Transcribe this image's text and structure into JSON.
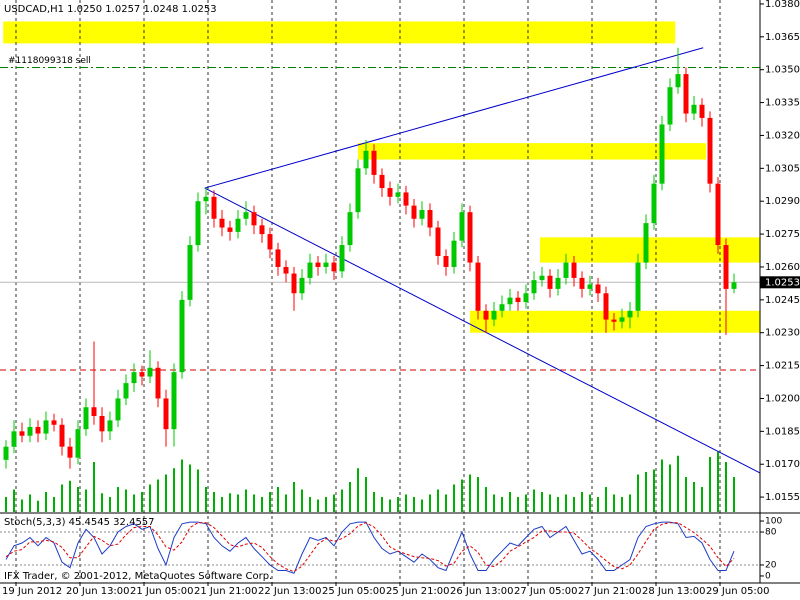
{
  "chart_data": {
    "type": "candlestick",
    "title": "USDCAD,H1  1.0250 1.0257 1.0248 1.0253",
    "copyright": "IFX Trader, © 2001-2012, MetaQuotes Software Corp.",
    "up_color": "#00c800",
    "down_color": "#ff0000",
    "volume_color": "#00b000",
    "xlim": [
      -2,
      93
    ],
    "ylim": [
      1.01482,
      1.03818
    ],
    "xticks": [
      {
        "value": 0,
        "label": "19 Jun 2012"
      },
      {
        "value": 8,
        "label": "20 Jun 13:00"
      },
      {
        "value": 16,
        "label": "21 Jun 05:00"
      },
      {
        "value": 24,
        "label": "21 Jun 21:00"
      },
      {
        "value": 32,
        "label": "22 Jun 13:00"
      },
      {
        "value": 40,
        "label": "25 Jun 05:00"
      },
      {
        "value": 48,
        "label": "25 Jun 21:00"
      },
      {
        "value": 56,
        "label": "26 Jun 13:00"
      },
      {
        "value": 64,
        "label": "27 Jun 05:00"
      },
      {
        "value": 72,
        "label": "27 Jun 21:00"
      },
      {
        "value": 80,
        "label": "28 Jun 13:00"
      },
      {
        "value": 88,
        "label": "29 Jun 05:00"
      }
    ],
    "yticks": [
      {
        "value": 1.038,
        "label": "1.0380"
      },
      {
        "value": 1.0365,
        "label": "1.0365"
      },
      {
        "value": 1.035,
        "label": "1.0350"
      },
      {
        "value": 1.0335,
        "label": "1.0335"
      },
      {
        "value": 1.032,
        "label": "1.0320"
      },
      {
        "value": 1.0305,
        "label": "1.0305"
      },
      {
        "value": 1.029,
        "label": "1.0290"
      },
      {
        "value": 1.0275,
        "label": "1.0275"
      },
      {
        "value": 1.026,
        "label": "1.0260"
      },
      {
        "value": 1.0245,
        "label": "1.0245"
      },
      {
        "value": 1.023,
        "label": "1.0230"
      },
      {
        "value": 1.0215,
        "label": "1.0215"
      },
      {
        "value": 1.02,
        "label": "1.0200"
      },
      {
        "value": 1.0185,
        "label": "1.0185"
      },
      {
        "value": 1.017,
        "label": "1.0170"
      },
      {
        "value": 1.0155,
        "label": "1.0155"
      }
    ],
    "last_price": {
      "value": 1.0253,
      "label": "1.0253"
    },
    "levels": [
      {
        "value": 1.0351,
        "color": "#008000",
        "dash": "8 3 2 3",
        "label": "#1118099318 sell"
      },
      {
        "value": 1.0213,
        "color": "#cc0000",
        "dash": "6 4"
      }
    ],
    "zones": [
      {
        "x": [
          -1.6,
          82.4
        ],
        "y": [
          1.0372,
          1.0362
        ]
      },
      {
        "x": [
          42.75,
          86.25
        ],
        "y": [
          1.03165,
          1.0309
        ]
      },
      {
        "x": [
          65.5,
          93
        ],
        "y": [
          1.02735,
          1.0262
        ]
      },
      {
        "x": [
          56.75,
          93
        ],
        "y": [
          1.024,
          1.023
        ]
      }
    ],
    "zone_color": "#ffff00",
    "trendlines": [
      {
        "x": [
          23.6,
          85.9
        ],
        "y": [
          1.0296,
          1.036
        ]
      },
      {
        "x": [
          23.6,
          93
        ],
        "y": [
          1.0296,
          1.0166
        ]
      }
    ],
    "trendline_color": "#0000cc",
    "ohlc": [
      [
        1.0172,
        1.0181,
        1.0168,
        1.0178
      ],
      [
        1.0178,
        1.019,
        1.0175,
        1.0185
      ],
      [
        1.0185,
        1.0189,
        1.018,
        1.0183
      ],
      [
        1.0183,
        1.0191,
        1.018,
        1.0187
      ],
      [
        1.0187,
        1.019,
        1.018,
        1.0184
      ],
      [
        1.0184,
        1.0194,
        1.0181,
        1.019
      ],
      [
        1.019,
        1.0193,
        1.0185,
        1.0188
      ],
      [
        1.0188,
        1.0191,
        1.0174,
        1.0178
      ],
      [
        1.0178,
        1.0182,
        1.0168,
        1.0173
      ],
      [
        1.0173,
        1.019,
        1.017,
        1.0186
      ],
      [
        1.0186,
        1.02,
        1.0183,
        1.0196
      ],
      [
        1.0196,
        1.0226,
        1.0188,
        1.0192
      ],
      [
        1.0192,
        1.0196,
        1.018,
        1.0185
      ],
      [
        1.0185,
        1.0194,
        1.0181,
        1.019
      ],
      [
        1.019,
        1.0204,
        1.0187,
        1.02
      ],
      [
        1.02,
        1.0211,
        1.0197,
        1.0207
      ],
      [
        1.0207,
        1.0216,
        1.0203,
        1.0212
      ],
      [
        1.0212,
        1.0215,
        1.0206,
        1.021
      ],
      [
        1.021,
        1.0222,
        1.0207,
        1.0214
      ],
      [
        1.0214,
        1.0217,
        1.0196,
        1.02
      ],
      [
        1.02,
        1.0204,
        1.0178,
        1.0186
      ],
      [
        1.0186,
        1.0216,
        1.0178,
        1.0212
      ],
      [
        1.0212,
        1.0249,
        1.0209,
        1.0245
      ],
      [
        1.0245,
        1.0274,
        1.0242,
        1.027
      ],
      [
        1.027,
        1.0294,
        1.0267,
        1.029
      ],
      [
        1.029,
        1.0296,
        1.0284,
        1.0292
      ],
      [
        1.0292,
        1.0295,
        1.0278,
        1.0282
      ],
      [
        1.0282,
        1.0286,
        1.0274,
        1.0278
      ],
      [
        1.0278,
        1.0281,
        1.0272,
        1.0276
      ],
      [
        1.0276,
        1.0286,
        1.0273,
        1.0282
      ],
      [
        1.0282,
        1.029,
        1.0279,
        1.0285
      ],
      [
        1.0285,
        1.0288,
        1.0275,
        1.0279
      ],
      [
        1.0279,
        1.0282,
        1.0271,
        1.0275
      ],
      [
        1.0275,
        1.0278,
        1.0264,
        1.0268
      ],
      [
        1.0268,
        1.0271,
        1.0256,
        1.026
      ],
      [
        1.026,
        1.0263,
        1.0253,
        1.0257
      ],
      [
        1.0257,
        1.026,
        1.024,
        1.0248
      ],
      [
        1.0248,
        1.0259,
        1.0245,
        1.0255
      ],
      [
        1.0255,
        1.0266,
        1.0252,
        1.0262
      ],
      [
        1.0262,
        1.0265,
        1.0256,
        1.026
      ],
      [
        1.026,
        1.0266,
        1.0257,
        1.0262
      ],
      [
        1.0262,
        1.0265,
        1.0254,
        1.0258
      ],
      [
        1.0258,
        1.0274,
        1.0255,
        1.027
      ],
      [
        1.027,
        1.0289,
        1.0267,
        1.0285
      ],
      [
        1.0285,
        1.0309,
        1.0282,
        1.0305
      ],
      [
        1.0305,
        1.0318,
        1.0302,
        1.0313
      ],
      [
        1.0313,
        1.0316,
        1.0298,
        1.0302
      ],
      [
        1.0302,
        1.0305,
        1.0292,
        1.0296
      ],
      [
        1.0296,
        1.0299,
        1.0288,
        1.0292
      ],
      [
        1.0292,
        1.0298,
        1.0289,
        1.0294
      ],
      [
        1.0294,
        1.0297,
        1.0284,
        1.0288
      ],
      [
        1.0288,
        1.0291,
        1.0278,
        1.0282
      ],
      [
        1.0282,
        1.029,
        1.0279,
        1.0286
      ],
      [
        1.0286,
        1.0289,
        1.0274,
        1.0278
      ],
      [
        1.0278,
        1.0281,
        1.0261,
        1.0265
      ],
      [
        1.0265,
        1.0268,
        1.0256,
        1.026
      ],
      [
        1.026,
        1.0276,
        1.0257,
        1.0272
      ],
      [
        1.0272,
        1.0289,
        1.0269,
        1.0285
      ],
      [
        1.0285,
        1.0288,
        1.0258,
        1.0262
      ],
      [
        1.0262,
        1.0265,
        1.0236,
        1.024
      ],
      [
        1.024,
        1.0243,
        1.023,
        1.0236
      ],
      [
        1.0236,
        1.0244,
        1.0233,
        1.024
      ],
      [
        1.024,
        1.0247,
        1.0237,
        1.0243
      ],
      [
        1.0243,
        1.025,
        1.024,
        1.0246
      ],
      [
        1.0246,
        1.0249,
        1.024,
        1.0244
      ],
      [
        1.0244,
        1.0252,
        1.0241,
        1.0248
      ],
      [
        1.0248,
        1.0258,
        1.0245,
        1.0254
      ],
      [
        1.0254,
        1.026,
        1.0251,
        1.0256
      ],
      [
        1.0256,
        1.0259,
        1.0246,
        1.025
      ],
      [
        1.025,
        1.0259,
        1.0247,
        1.0255
      ],
      [
        1.0255,
        1.0266,
        1.0252,
        1.0262
      ],
      [
        1.0262,
        1.0265,
        1.0251,
        1.0255
      ],
      [
        1.0255,
        1.0258,
        1.0246,
        1.025
      ],
      [
        1.025,
        1.0256,
        1.0247,
        1.0252
      ],
      [
        1.0252,
        1.0255,
        1.0244,
        1.0248
      ],
      [
        1.0248,
        1.0251,
        1.023,
        1.0236
      ],
      [
        1.0236,
        1.0239,
        1.0231,
        1.0235
      ],
      [
        1.0235,
        1.0241,
        1.0232,
        1.0237
      ],
      [
        1.0237,
        1.0244,
        1.0232,
        1.024
      ],
      [
        1.024,
        1.0266,
        1.0237,
        1.0262
      ],
      [
        1.0262,
        1.0284,
        1.0259,
        1.028
      ],
      [
        1.028,
        1.0302,
        1.0277,
        1.0298
      ],
      [
        1.0298,
        1.0329,
        1.0295,
        1.0325
      ],
      [
        1.0325,
        1.0346,
        1.0322,
        1.0342
      ],
      [
        1.0342,
        1.036,
        1.0339,
        1.0348
      ],
      [
        1.0348,
        1.0351,
        1.0326,
        1.033
      ],
      [
        1.033,
        1.0338,
        1.0327,
        1.0334
      ],
      [
        1.0334,
        1.0337,
        1.0324,
        1.0328
      ],
      [
        1.0328,
        1.0331,
        1.0294,
        1.0298
      ],
      [
        1.0298,
        1.0301,
        1.0266,
        1.027
      ],
      [
        1.027,
        1.0273,
        1.0229,
        1.025
      ],
      [
        1.025,
        1.0257,
        1.0248,
        1.0253
      ]
    ],
    "volume": [
      12,
      18,
      10,
      14,
      9,
      16,
      12,
      22,
      25,
      20,
      18,
      40,
      15,
      12,
      20,
      18,
      14,
      16,
      22,
      26,
      30,
      35,
      42,
      38,
      34,
      20,
      16,
      12,
      15,
      14,
      18,
      14,
      12,
      16,
      20,
      14,
      24,
      18,
      12,
      10,
      12,
      14,
      18,
      24,
      35,
      28,
      16,
      12,
      10,
      12,
      14,
      12,
      10,
      14,
      18,
      14,
      22,
      26,
      30,
      28,
      20,
      14,
      12,
      16,
      12,
      14,
      18,
      16,
      14,
      12,
      14,
      12,
      16,
      14,
      12,
      20,
      14,
      12,
      14,
      30,
      32,
      34,
      42,
      38,
      45,
      28,
      24,
      20,
      44,
      48,
      40,
      28
    ],
    "stoch": {
      "label": "Stoch(5,3,3) 45.4545 32.4557",
      "ylim": [
        -11,
        111
      ],
      "yticks": [
        100,
        80,
        20,
        0
      ],
      "main_color": "#1e3cc8",
      "signal_color": "#e00000",
      "main": [
        30,
        55,
        60,
        70,
        55,
        70,
        60,
        25,
        15,
        60,
        85,
        70,
        40,
        55,
        80,
        90,
        95,
        85,
        90,
        50,
        20,
        70,
        95,
        98,
        98,
        95,
        70,
        55,
        45,
        60,
        70,
        50,
        35,
        20,
        10,
        10,
        5,
        40,
        70,
        65,
        70,
        55,
        80,
        95,
        98,
        98,
        70,
        50,
        40,
        45,
        35,
        25,
        40,
        30,
        15,
        10,
        45,
        80,
        40,
        10,
        10,
        30,
        45,
        60,
        55,
        70,
        85,
        90,
        70,
        80,
        90,
        65,
        40,
        45,
        30,
        10,
        10,
        20,
        30,
        70,
        90,
        95,
        98,
        98,
        95,
        70,
        72,
        60,
        30,
        10,
        10,
        45
      ],
      "signal": [
        35,
        45,
        48,
        62,
        62,
        65,
        62,
        52,
        33,
        33,
        53,
        72,
        65,
        55,
        58,
        75,
        88,
        90,
        90,
        75,
        53,
        47,
        62,
        88,
        97,
        97,
        88,
        73,
        57,
        53,
        58,
        60,
        52,
        35,
        22,
        13,
        8,
        18,
        38,
        58,
        68,
        63,
        68,
        77,
        91,
        97,
        89,
        73,
        53,
        45,
        40,
        35,
        33,
        32,
        28,
        18,
        23,
        45,
        55,
        43,
        20,
        17,
        28,
        45,
        53,
        62,
        70,
        82,
        82,
        80,
        80,
        78,
        65,
        50,
        40,
        28,
        17,
        13,
        20,
        40,
        63,
        85,
        94,
        97,
        97,
        88,
        79,
        67,
        54,
        33,
        17,
        32
      ]
    }
  }
}
